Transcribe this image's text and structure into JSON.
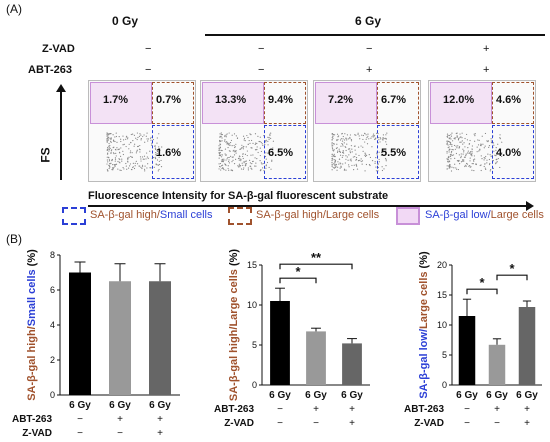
{
  "panel_a_label": "(A)",
  "panel_b_label": "(B)",
  "top_headers": {
    "zero": "0 Gy",
    "six": "6 Gy"
  },
  "row_labels": {
    "zvad": "Z-VAD",
    "abt": "ABT-263"
  },
  "signs": {
    "zvad": [
      "−",
      "−",
      "−",
      "+"
    ],
    "abt": [
      "−",
      "−",
      "+",
      "+"
    ]
  },
  "flow_panels": [
    {
      "top_left": "1.7%",
      "top_right": "0.7%",
      "bottom_right": "1.6%"
    },
    {
      "top_left": "13.3%",
      "top_right": "9.4%",
      "bottom_right": "6.5%"
    },
    {
      "top_left": "7.2%",
      "top_right": "6.7%",
      "bottom_right": "5.5%"
    },
    {
      "top_left": "12.0%",
      "top_right": "4.6%",
      "bottom_right": "4.0%"
    }
  ],
  "fs_label": "FS",
  "x_axis_label": "Fluorescence Intensity for SA-β-gal fluorescent substrate",
  "legend": [
    {
      "part1": "SA-β-gal high/",
      "part2": "Small cells",
      "color": "#2b3fd6"
    },
    {
      "part1": "SA-β-gal high/",
      "part2": "Large cells",
      "color": "#a0522d"
    },
    {
      "part1": "SA-β-gal low/",
      "part2": "Large cells",
      "color": "#c890d8"
    }
  ],
  "chart_data": [
    {
      "type": "bar",
      "ylabel": "SA-β-gal high/Small cells (%)",
      "ylim": [
        0,
        8
      ],
      "yticks": [
        0,
        2,
        4,
        6,
        8
      ],
      "categories": [
        "6 Gy",
        "6 Gy",
        "6 Gy"
      ],
      "values": [
        7.0,
        6.5,
        6.5
      ],
      "errors": [
        0.6,
        1.0,
        1.0
      ],
      "colors": [
        "#000000",
        "#999999",
        "#666666"
      ],
      "significance": []
    },
    {
      "type": "bar",
      "ylabel": "SA-β-gal high/Large cells (%)",
      "ylim": [
        0,
        15
      ],
      "yticks": [
        0,
        5,
        10,
        15
      ],
      "categories": [
        "6 Gy",
        "6 Gy",
        "6 Gy"
      ],
      "values": [
        10.5,
        6.7,
        5.2
      ],
      "errors": [
        1.6,
        0.4,
        0.6
      ],
      "colors": [
        "#000000",
        "#999999",
        "#666666"
      ],
      "significance": [
        {
          "from": 0,
          "to": 1,
          "label": "*"
        },
        {
          "from": 0,
          "to": 2,
          "label": "**"
        }
      ]
    },
    {
      "type": "bar",
      "ylabel": "SA-β-gal low/Large cells (%)",
      "ylim": [
        0,
        20
      ],
      "yticks": [
        0,
        5,
        10,
        15,
        20
      ],
      "categories": [
        "6 Gy",
        "6 Gy",
        "6 Gy"
      ],
      "values": [
        11.5,
        6.7,
        13.0
      ],
      "errors": [
        2.8,
        1.0,
        1.0
      ],
      "colors": [
        "#000000",
        "#999999",
        "#666666"
      ],
      "significance": [
        {
          "from": 0,
          "to": 1,
          "label": "*"
        },
        {
          "from": 1,
          "to": 2,
          "label": "*"
        }
      ]
    }
  ],
  "bottom_rows": {
    "abt_signs": [
      "−",
      "+",
      "+"
    ],
    "zvad_signs": [
      "−",
      "−",
      "+"
    ]
  }
}
